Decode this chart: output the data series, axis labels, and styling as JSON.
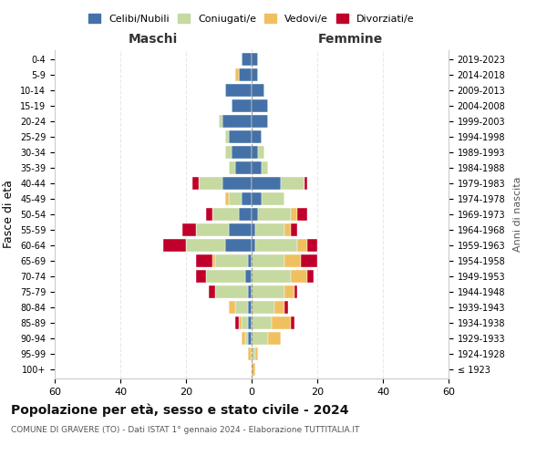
{
  "age_groups": [
    "100+",
    "95-99",
    "90-94",
    "85-89",
    "80-84",
    "75-79",
    "70-74",
    "65-69",
    "60-64",
    "55-59",
    "50-54",
    "45-49",
    "40-44",
    "35-39",
    "30-34",
    "25-29",
    "20-24",
    "15-19",
    "10-14",
    "5-9",
    "0-4"
  ],
  "birth_years": [
    "≤ 1923",
    "1924-1928",
    "1929-1933",
    "1934-1938",
    "1939-1943",
    "1944-1948",
    "1949-1953",
    "1954-1958",
    "1959-1963",
    "1964-1968",
    "1969-1973",
    "1974-1978",
    "1979-1983",
    "1984-1988",
    "1989-1993",
    "1994-1998",
    "1999-2003",
    "2004-2008",
    "2009-2013",
    "2014-2018",
    "2019-2023"
  ],
  "colors": {
    "celibi": "#4472a8",
    "coniugati": "#c5d9a0",
    "vedovi": "#f0c060",
    "divorziati": "#c0002a"
  },
  "maschi": {
    "celibi": [
      0,
      0,
      1,
      1,
      1,
      1,
      2,
      1,
      8,
      7,
      4,
      3,
      9,
      5,
      6,
      7,
      9,
      6,
      8,
      4,
      3
    ],
    "coniugati": [
      0,
      0,
      1,
      2,
      4,
      10,
      12,
      10,
      12,
      10,
      8,
      4,
      7,
      2,
      2,
      1,
      1,
      0,
      0,
      0,
      0
    ],
    "vedovi": [
      0,
      1,
      1,
      1,
      2,
      0,
      0,
      1,
      0,
      0,
      0,
      1,
      0,
      0,
      0,
      0,
      0,
      0,
      0,
      1,
      0
    ],
    "divorziati": [
      0,
      0,
      0,
      1,
      0,
      2,
      3,
      5,
      7,
      4,
      2,
      0,
      2,
      0,
      0,
      0,
      0,
      0,
      0,
      0,
      0
    ]
  },
  "femmine": {
    "celibi": [
      0,
      0,
      0,
      0,
      0,
      0,
      0,
      0,
      1,
      1,
      2,
      3,
      9,
      3,
      2,
      3,
      5,
      5,
      4,
      2,
      2
    ],
    "coniugati": [
      0,
      1,
      5,
      6,
      7,
      10,
      12,
      10,
      13,
      9,
      10,
      7,
      7,
      2,
      2,
      0,
      0,
      0,
      0,
      0,
      0
    ],
    "vedovi": [
      1,
      1,
      4,
      6,
      3,
      3,
      5,
      5,
      3,
      2,
      2,
      0,
      0,
      0,
      0,
      0,
      0,
      0,
      0,
      0,
      0
    ],
    "divorziati": [
      0,
      0,
      0,
      1,
      1,
      1,
      2,
      5,
      3,
      2,
      3,
      0,
      1,
      0,
      0,
      0,
      0,
      0,
      0,
      0,
      0
    ]
  },
  "xlim": 60,
  "title": "Popolazione per età, sesso e stato civile - 2024",
  "subtitle": "COMUNE DI GRAVERE (TO) - Dati ISTAT 1° gennaio 2024 - Elaborazione TUTTITALIA.IT",
  "ylabel": "Fasce di età",
  "right_ylabel": "Anni di nascita",
  "legend_labels": [
    "Celibi/Nubili",
    "Coniugati/e",
    "Vedovi/e",
    "Divorziati/e"
  ],
  "maschi_label": "Maschi",
  "femmine_label": "Femmine"
}
